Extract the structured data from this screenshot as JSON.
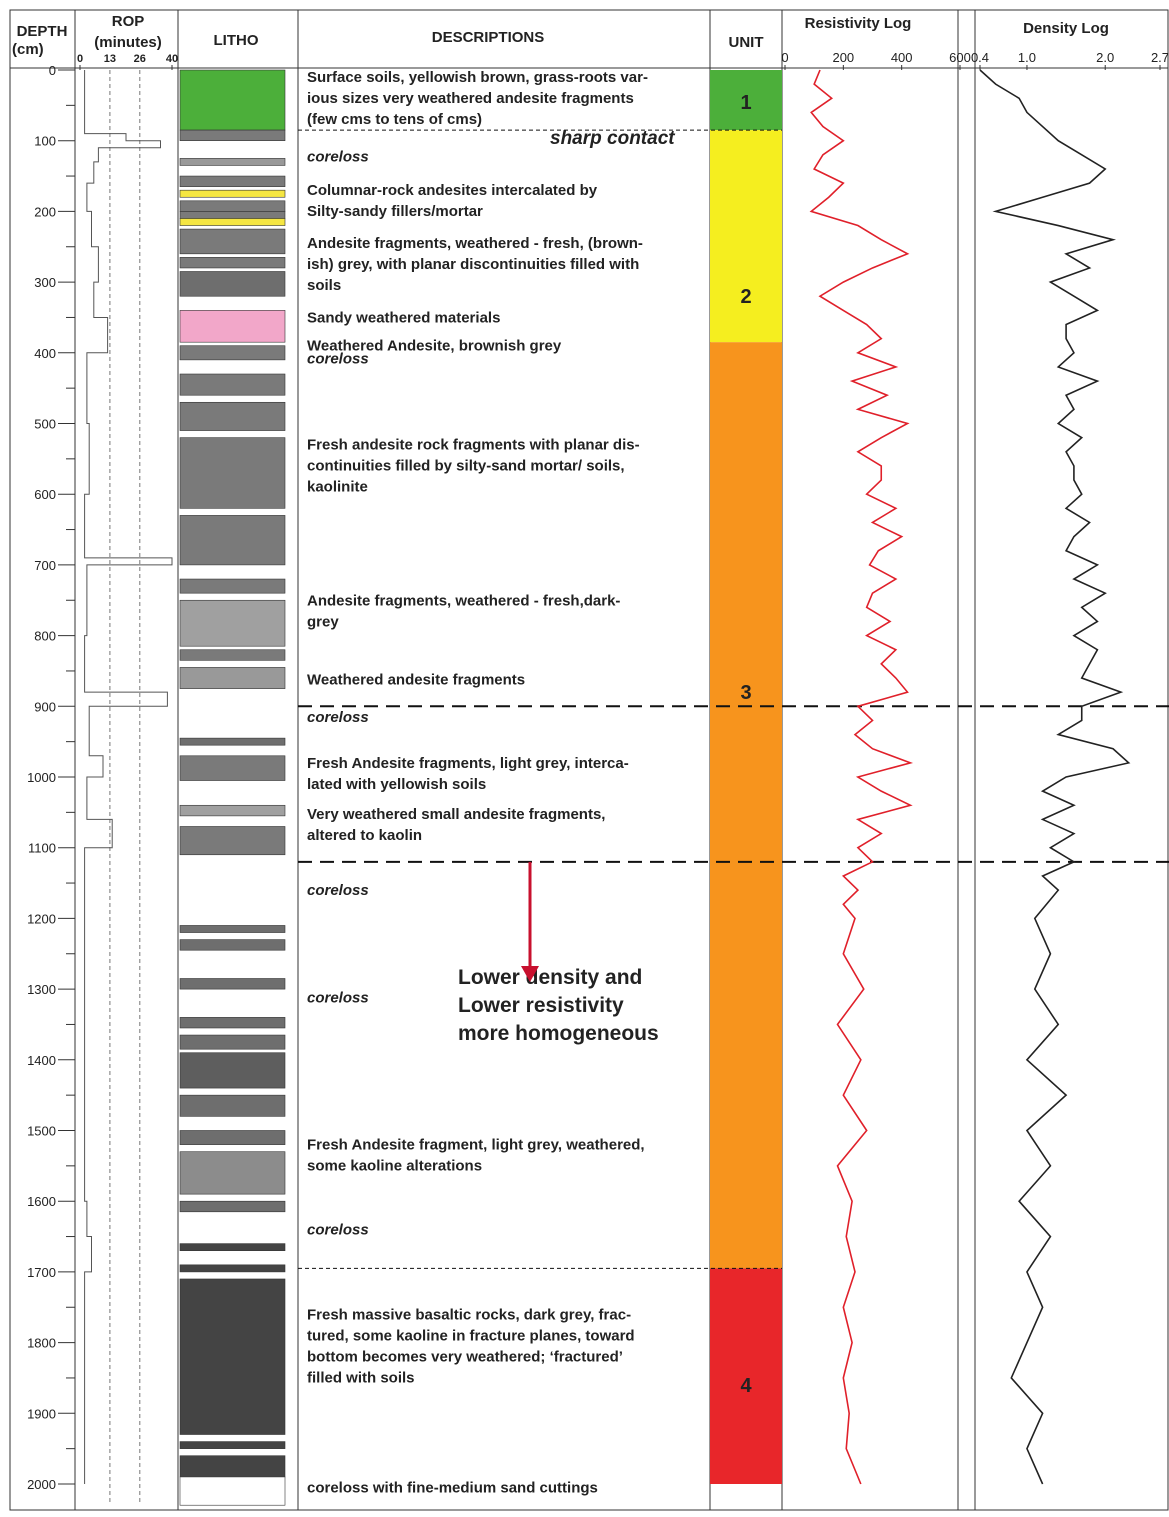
{
  "header": {
    "depth": [
      "DEPTH",
      "(cm)"
    ],
    "rop": [
      "ROP",
      "(minutes)"
    ],
    "litho": "LITHO",
    "descriptions": "DESCRIPTIONS",
    "unit": "UNIT",
    "resistivity": "Resistivity Log",
    "density": "Density Log"
  },
  "depth_axis": {
    "ylim": [
      0,
      2000
    ],
    "yticks": [
      0,
      100,
      200,
      300,
      400,
      500,
      600,
      700,
      800,
      900,
      1000,
      1100,
      1200,
      1300,
      1400,
      1500,
      1600,
      1700,
      1800,
      1900,
      2000
    ]
  },
  "rop": {
    "xlim": [
      0,
      40
    ],
    "xticks": [
      0,
      13,
      26,
      40
    ],
    "grid": true,
    "color": "#555555",
    "depth": [
      0,
      50,
      90,
      100,
      110,
      130,
      160,
      200,
      250,
      300,
      350,
      400,
      500,
      600,
      690,
      700,
      800,
      880,
      900,
      970,
      1000,
      1060,
      1100,
      1500,
      1600,
      1650,
      1700,
      2000
    ],
    "values": [
      2,
      2,
      20,
      35,
      8,
      6,
      3,
      5,
      8,
      6,
      12,
      3,
      4,
      2,
      40,
      3,
      2,
      38,
      4,
      10,
      3,
      14,
      2,
      2,
      3,
      5,
      2,
      2
    ]
  },
  "lithology": [
    {
      "top": 0,
      "bottom": 85,
      "color": "#4caf3a"
    },
    {
      "top": 85,
      "bottom": 100,
      "color": "#7a7a7a"
    },
    {
      "top": 125,
      "bottom": 135,
      "color": "#999999"
    },
    {
      "top": 150,
      "bottom": 165,
      "color": "#7a7a7a"
    },
    {
      "top": 170,
      "bottom": 180,
      "color": "#f5e642"
    },
    {
      "top": 185,
      "bottom": 200,
      "color": "#7a7a7a"
    },
    {
      "top": 200,
      "bottom": 210,
      "color": "#7a7a7a"
    },
    {
      "top": 210,
      "bottom": 220,
      "color": "#f5e642"
    },
    {
      "top": 225,
      "bottom": 260,
      "color": "#7a7a7a"
    },
    {
      "top": 265,
      "bottom": 280,
      "color": "#7a7a7a"
    },
    {
      "top": 285,
      "bottom": 320,
      "color": "#6e6e6e"
    },
    {
      "top": 340,
      "bottom": 385,
      "color": "#f2a7c9"
    },
    {
      "top": 390,
      "bottom": 410,
      "color": "#7a7a7a"
    },
    {
      "top": 430,
      "bottom": 460,
      "color": "#7a7a7a"
    },
    {
      "top": 470,
      "bottom": 510,
      "color": "#7a7a7a"
    },
    {
      "top": 520,
      "bottom": 620,
      "color": "#7a7a7a"
    },
    {
      "top": 630,
      "bottom": 700,
      "color": "#7a7a7a"
    },
    {
      "top": 720,
      "bottom": 740,
      "color": "#7a7a7a"
    },
    {
      "top": 750,
      "bottom": 815,
      "color": "#a0a0a0"
    },
    {
      "top": 820,
      "bottom": 835,
      "color": "#7a7a7a"
    },
    {
      "top": 845,
      "bottom": 875,
      "color": "#999999"
    },
    {
      "top": 945,
      "bottom": 955,
      "color": "#6e6e6e"
    },
    {
      "top": 970,
      "bottom": 1005,
      "color": "#7a7a7a"
    },
    {
      "top": 1040,
      "bottom": 1055,
      "color": "#a0a0a0"
    },
    {
      "top": 1070,
      "bottom": 1110,
      "color": "#7a7a7a"
    },
    {
      "top": 1210,
      "bottom": 1220,
      "color": "#6e6e6e"
    },
    {
      "top": 1230,
      "bottom": 1245,
      "color": "#6e6e6e"
    },
    {
      "top": 1285,
      "bottom": 1300,
      "color": "#6e6e6e"
    },
    {
      "top": 1340,
      "bottom": 1355,
      "color": "#6e6e6e"
    },
    {
      "top": 1365,
      "bottom": 1385,
      "color": "#6e6e6e"
    },
    {
      "top": 1390,
      "bottom": 1440,
      "color": "#5e5e5e"
    },
    {
      "top": 1450,
      "bottom": 1480,
      "color": "#6e6e6e"
    },
    {
      "top": 1500,
      "bottom": 1520,
      "color": "#6e6e6e"
    },
    {
      "top": 1530,
      "bottom": 1590,
      "color": "#8c8c8c"
    },
    {
      "top": 1600,
      "bottom": 1615,
      "color": "#6e6e6e"
    },
    {
      "top": 1660,
      "bottom": 1670,
      "color": "#444444"
    },
    {
      "top": 1690,
      "bottom": 1700,
      "color": "#444444"
    },
    {
      "top": 1710,
      "bottom": 1930,
      "color": "#444444"
    },
    {
      "top": 1940,
      "bottom": 1950,
      "color": "#444444"
    },
    {
      "top": 1960,
      "bottom": 1990,
      "color": "#444444"
    },
    {
      "top": 1990,
      "bottom": 2030,
      "color": "#ffffff"
    }
  ],
  "descriptions": [
    {
      "depth": 10,
      "lines": [
        "Surface soils, yellowish brown, grass-roots var-",
        "ious sizes very weathered andesite fragments",
        "(few cms to tens of cms)"
      ]
    },
    {
      "depth": 122,
      "italic": true,
      "lines": [
        "coreloss"
      ]
    },
    {
      "depth": 170,
      "lines": [
        "Columnar-rock andesites intercalated by",
        "Silty-sandy fillers/mortar"
      ]
    },
    {
      "depth": 245,
      "lines": [
        "Andesite fragments, weathered - fresh, (brown-",
        "ish) grey,  with planar discontinuities filled with",
        "soils"
      ]
    },
    {
      "depth": 350,
      "lines": [
        "Sandy weathered materials"
      ]
    },
    {
      "depth": 390,
      "lines": [
        "Weathered Andesite, brownish grey"
      ]
    },
    {
      "depth": 408,
      "italic": true,
      "lines": [
        "coreloss"
      ]
    },
    {
      "depth": 530,
      "lines": [
        "Fresh andesite rock fragments with planar dis-",
        "continuities filled by silty-sand mortar/ soils,",
        "kaolinite"
      ]
    },
    {
      "depth": 750,
      "lines": [
        "Andesite fragments, weathered - fresh,dark-",
        "grey"
      ]
    },
    {
      "depth": 862,
      "lines": [
        "Weathered andesite fragments"
      ]
    },
    {
      "depth": 915,
      "italic": true,
      "lines": [
        "coreloss"
      ]
    },
    {
      "depth": 980,
      "lines": [
        "Fresh Andesite fragments, light grey, interca-",
        "lated with yellowish soils"
      ]
    },
    {
      "depth": 1052,
      "lines": [
        "Very weathered small andesite fragments,",
        "altered to kaolin"
      ]
    },
    {
      "depth": 1160,
      "italic": true,
      "lines": [
        "coreloss"
      ]
    },
    {
      "depth": 1312,
      "italic": true,
      "lines": [
        "coreloss"
      ]
    },
    {
      "depth": 1520,
      "lines": [
        "Fresh Andesite fragment, light grey, weathered,",
        "some kaoline alterations"
      ]
    },
    {
      "depth": 1640,
      "italic": true,
      "lines": [
        "coreloss"
      ]
    },
    {
      "depth": 1760,
      "lines": [
        "Fresh massive basaltic rocks, dark grey, frac-",
        "tured, some kaoline in fracture planes, toward",
        "bottom becomes very weathered; ‘fractured’",
        "filled with soils"
      ]
    },
    {
      "depth": 2005,
      "lines": [
        "coreloss with fine-medium sand cuttings"
      ]
    }
  ],
  "annotations": [
    {
      "depth": 105,
      "text": "sharp contact"
    },
    {
      "depth": 1283,
      "lines": [
        "Lower density and",
        "Lower resistivity",
        "more homogeneous"
      ],
      "arrow": [
        1120,
        1290
      ]
    }
  ],
  "units": [
    {
      "label": "1",
      "top": 0,
      "bottom": 85,
      "label_depth": 45,
      "color": "#4caf3a"
    },
    {
      "label": "2",
      "top": 85,
      "bottom": 385,
      "label_depth": 320,
      "color": "#f5ee1f"
    },
    {
      "label": "3",
      "top": 385,
      "bottom": 1695,
      "label_depth": 880,
      "color": "#f7941d"
    },
    {
      "label": "4",
      "top": 1695,
      "bottom": 2000,
      "label_depth": 1860,
      "color": "#e8262a"
    }
  ],
  "boundaries": [
    {
      "depth": 85,
      "style": "thin"
    },
    {
      "depth": 900,
      "style": "thick"
    },
    {
      "depth": 1120,
      "style": "thick"
    },
    {
      "depth": 1695,
      "style": "thin"
    }
  ],
  "resistivity": {
    "xlim": [
      0,
      600
    ],
    "xticks": [
      0,
      200,
      400,
      600
    ],
    "color": "#e0202a",
    "depth": [
      0,
      20,
      40,
      60,
      80,
      100,
      120,
      140,
      160,
      180,
      200,
      220,
      240,
      260,
      280,
      300,
      320,
      340,
      360,
      380,
      400,
      420,
      440,
      460,
      480,
      500,
      520,
      540,
      560,
      580,
      600,
      620,
      640,
      660,
      680,
      700,
      720,
      740,
      760,
      780,
      800,
      820,
      840,
      860,
      880,
      900,
      920,
      940,
      960,
      980,
      1000,
      1020,
      1040,
      1060,
      1080,
      1100,
      1120,
      1140,
      1160,
      1180,
      1200,
      1250,
      1300,
      1350,
      1400,
      1450,
      1500,
      1550,
      1600,
      1650,
      1700,
      1750,
      1800,
      1850,
      1900,
      1950,
      2000
    ],
    "values": [
      120,
      100,
      160,
      90,
      130,
      200,
      130,
      100,
      200,
      150,
      90,
      250,
      330,
      420,
      300,
      200,
      120,
      200,
      280,
      330,
      250,
      380,
      230,
      350,
      250,
      420,
      330,
      250,
      330,
      330,
      280,
      380,
      300,
      400,
      320,
      290,
      380,
      300,
      280,
      360,
      280,
      380,
      330,
      380,
      420,
      250,
      300,
      240,
      300,
      430,
      250,
      330,
      430,
      250,
      330,
      250,
      300,
      200,
      250,
      200,
      240,
      200,
      270,
      180,
      260,
      200,
      280,
      180,
      230,
      210,
      240,
      200,
      230,
      200,
      220,
      210,
      260
    ]
  },
  "density": {
    "xlim": [
      0.4,
      2.7
    ],
    "xticks": [
      0.4,
      {
        "value": 1,
        "label": "1.0"
      },
      {
        "value": 2,
        "label": "2.0"
      },
      2.7
    ],
    "color": "#222222",
    "depth": [
      0,
      20,
      40,
      60,
      80,
      100,
      120,
      140,
      160,
      180,
      200,
      220,
      240,
      260,
      280,
      300,
      320,
      340,
      360,
      380,
      400,
      420,
      440,
      460,
      480,
      500,
      520,
      540,
      560,
      580,
      600,
      620,
      640,
      660,
      680,
      700,
      720,
      740,
      760,
      780,
      800,
      820,
      840,
      860,
      880,
      900,
      920,
      940,
      960,
      980,
      1000,
      1020,
      1040,
      1060,
      1080,
      1100,
      1120,
      1140,
      1160,
      1200,
      1250,
      1300,
      1350,
      1400,
      1450,
      1500,
      1550,
      1600,
      1650,
      1700,
      1750,
      1800,
      1850,
      1900,
      1950,
      2000
    ],
    "values": [
      0.4,
      0.6,
      0.9,
      1.0,
      1.2,
      1.4,
      1.7,
      2.0,
      1.8,
      1.2,
      0.6,
      1.4,
      2.1,
      1.5,
      1.8,
      1.3,
      1.6,
      1.9,
      1.5,
      1.5,
      1.6,
      1.4,
      1.9,
      1.5,
      1.6,
      1.4,
      1.7,
      1.5,
      1.6,
      1.6,
      1.7,
      1.5,
      1.8,
      1.6,
      1.5,
      1.9,
      1.6,
      2.0,
      1.7,
      1.9,
      1.6,
      1.9,
      1.8,
      1.7,
      2.2,
      1.7,
      1.7,
      1.4,
      2.1,
      2.3,
      1.5,
      1.2,
      1.6,
      1.2,
      1.6,
      1.3,
      1.6,
      1.2,
      1.4,
      1.1,
      1.3,
      1.1,
      1.4,
      1.0,
      1.5,
      1.0,
      1.3,
      0.9,
      1.3,
      1.0,
      1.2,
      1.0,
      0.8,
      1.2,
      1.0,
      1.2
    ]
  }
}
